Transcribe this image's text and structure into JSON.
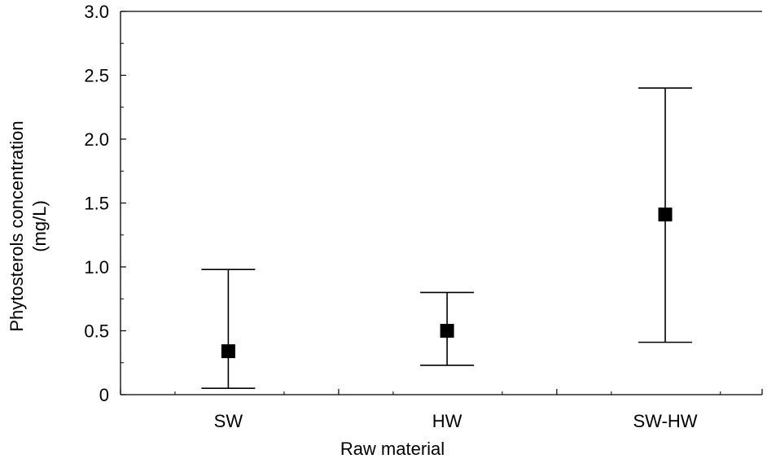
{
  "chart_data": {
    "type": "scatter",
    "title": "",
    "xlabel": "Raw  material",
    "ylabel_lines": [
      "Phytosterols concentration",
      "(mg/L)"
    ],
    "categories": [
      "SW",
      "HW",
      "SW-HW"
    ],
    "series": [
      {
        "mean": [
          0.34,
          0.5,
          1.41
        ],
        "lower": [
          0.05,
          0.23,
          0.41
        ],
        "upper": [
          0.98,
          0.8,
          2.4
        ]
      }
    ],
    "yticks": [
      "0",
      "0.5",
      "1.0",
      "1.5",
      "2.0",
      "2.5",
      "3.0"
    ],
    "ylim": [
      0,
      3.0
    ],
    "grid": false,
    "colors": {
      "marker": "#000000",
      "axis": "#000000"
    }
  }
}
